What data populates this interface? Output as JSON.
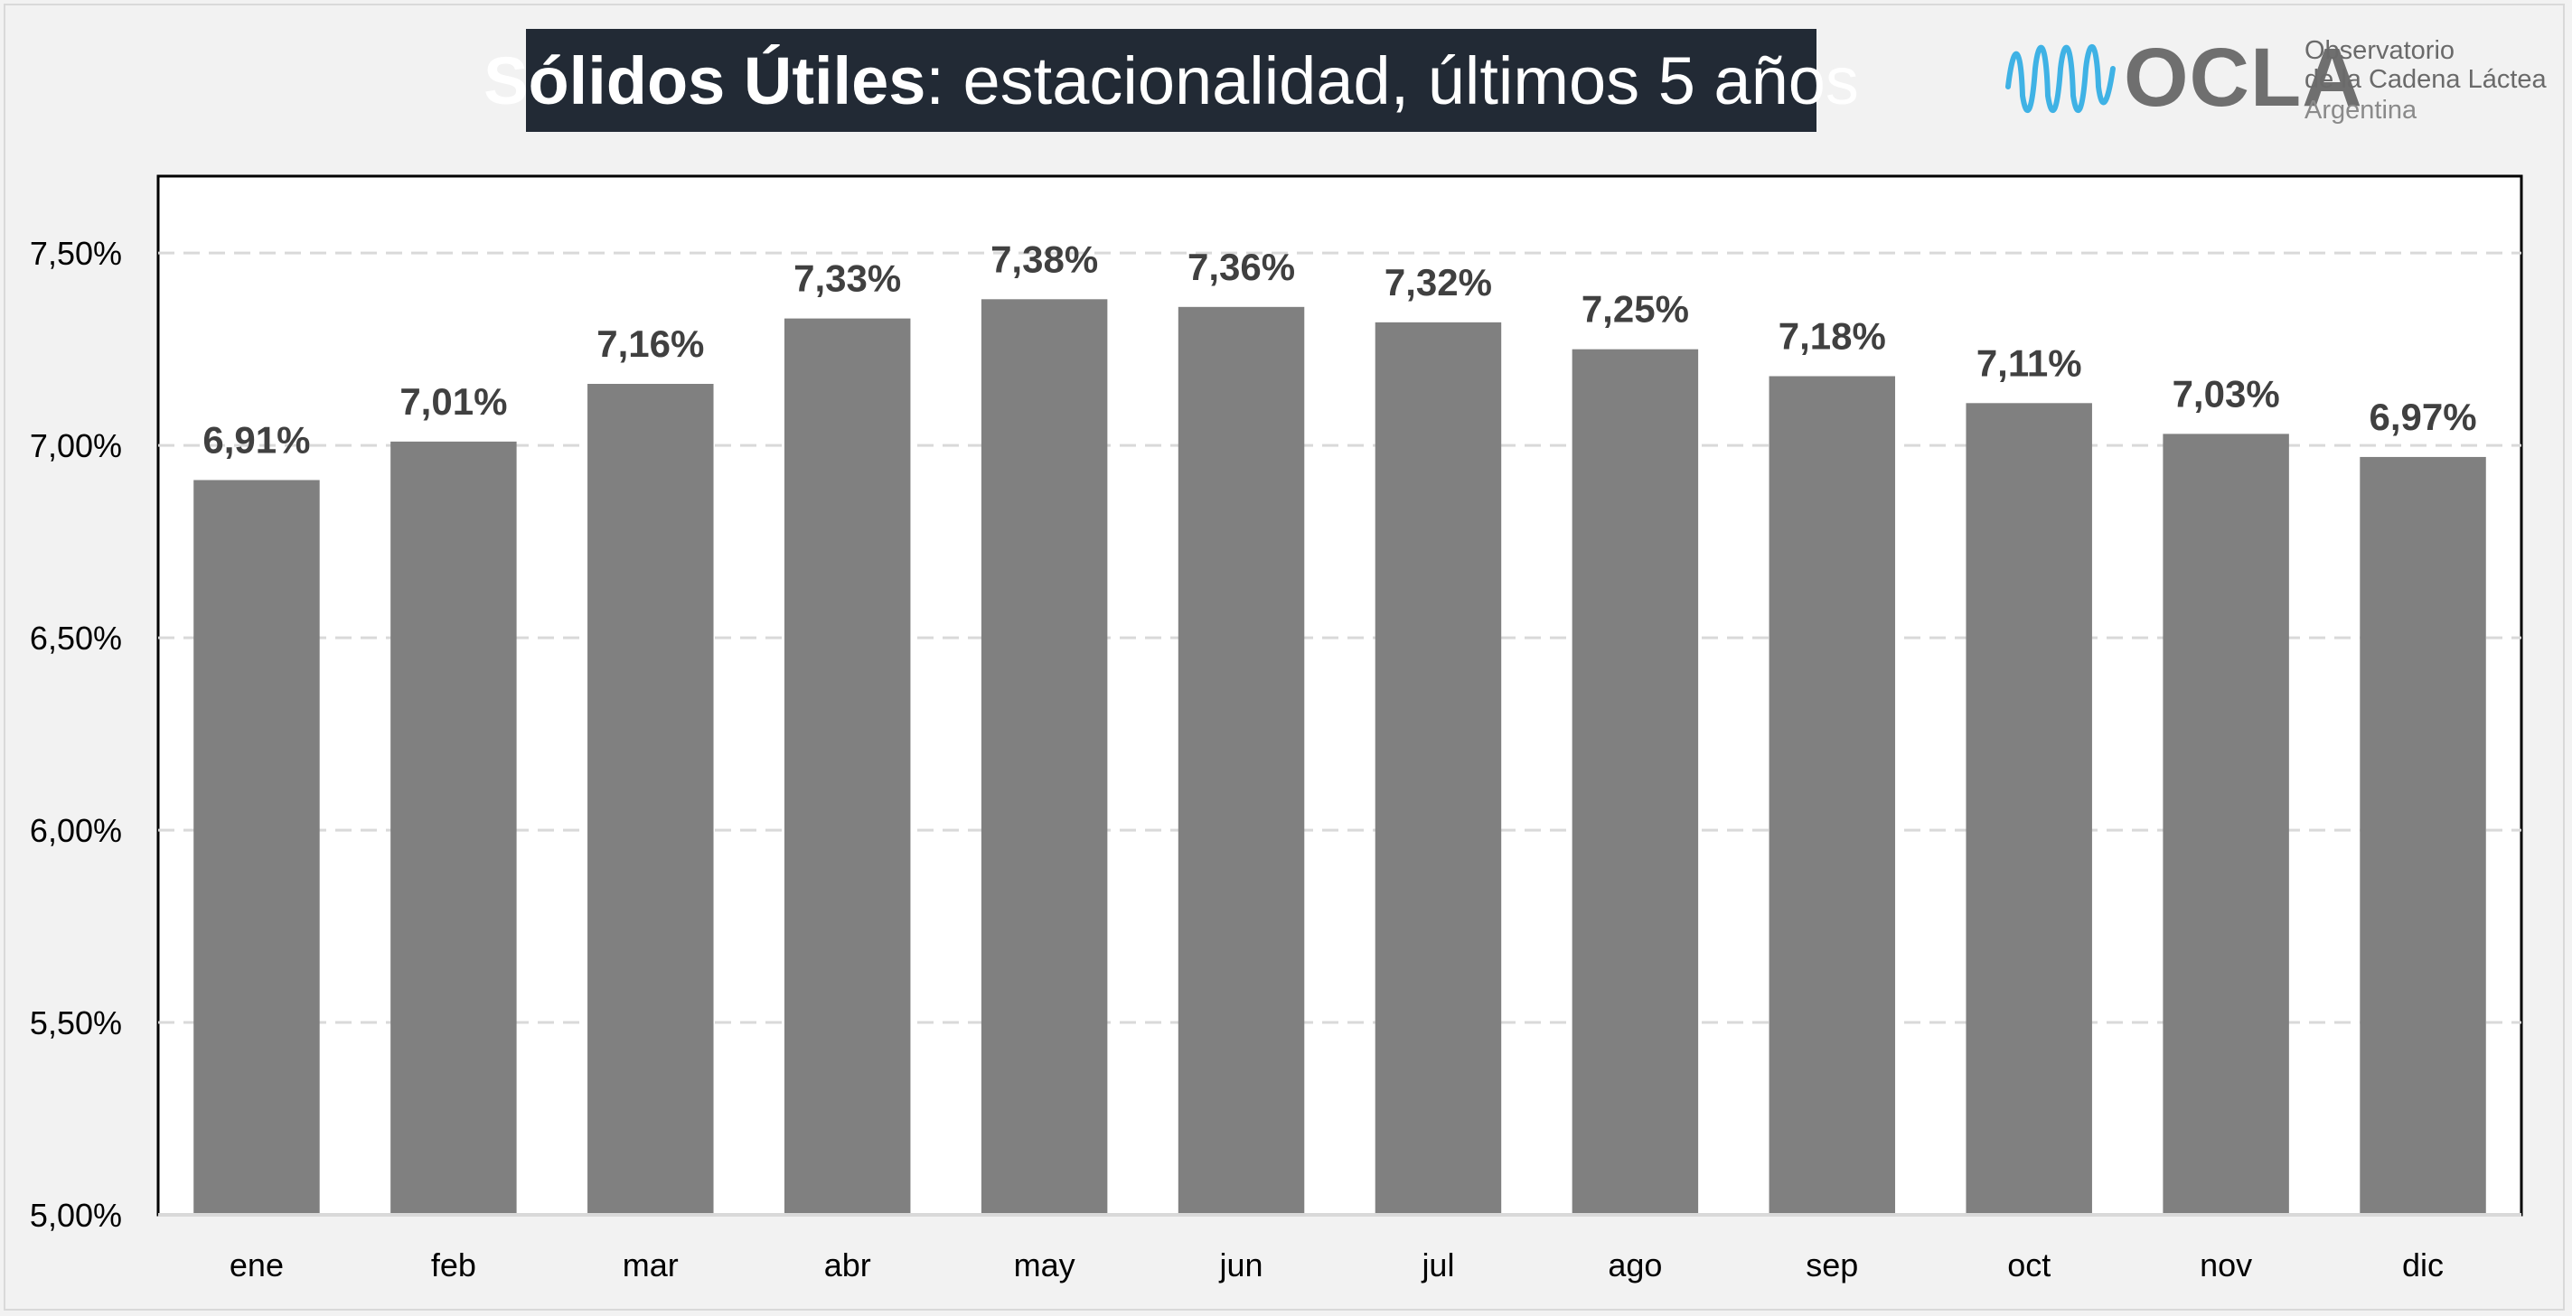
{
  "title": {
    "bold": "Sólidos Útiles",
    "rest": ": estacionalidad, últimos 5 años"
  },
  "logo": {
    "name": "OCLA",
    "line1": "Observatorio",
    "line2": "de la Cadena Láctea",
    "line3": "Argentina",
    "wave_icon": "milk-wave-icon",
    "wave_color": "#3fb2e5"
  },
  "colors": {
    "bar": "#808080",
    "title_bg": "#222a35",
    "plot_bg": "#ffffff",
    "grid": "#d9d9d9",
    "label": "#404040"
  },
  "chart_data": {
    "type": "bar",
    "title": "Sólidos Útiles: estacionalidad, últimos 5 años",
    "xlabel": "",
    "ylabel": "",
    "categories": [
      "ene",
      "feb",
      "mar",
      "abr",
      "may",
      "jun",
      "jul",
      "ago",
      "sep",
      "oct",
      "nov",
      "dic"
    ],
    "values": [
      6.91,
      7.01,
      7.16,
      7.33,
      7.38,
      7.36,
      7.32,
      7.25,
      7.18,
      7.11,
      7.03,
      6.97
    ],
    "value_labels": [
      "6,91%",
      "7,01%",
      "7,16%",
      "7,33%",
      "7,38%",
      "7,36%",
      "7,32%",
      "7,25%",
      "7,18%",
      "7,11%",
      "7,03%",
      "6,97%"
    ],
    "ylim": [
      5.0,
      7.7
    ],
    "yticks": [
      5.0,
      5.5,
      6.0,
      6.5,
      7.0,
      7.5
    ],
    "ytick_labels": [
      "5,00%",
      "5,50%",
      "6,00%",
      "6,50%",
      "7,00%",
      "7,50%"
    ],
    "grid": true,
    "legend": "none"
  }
}
